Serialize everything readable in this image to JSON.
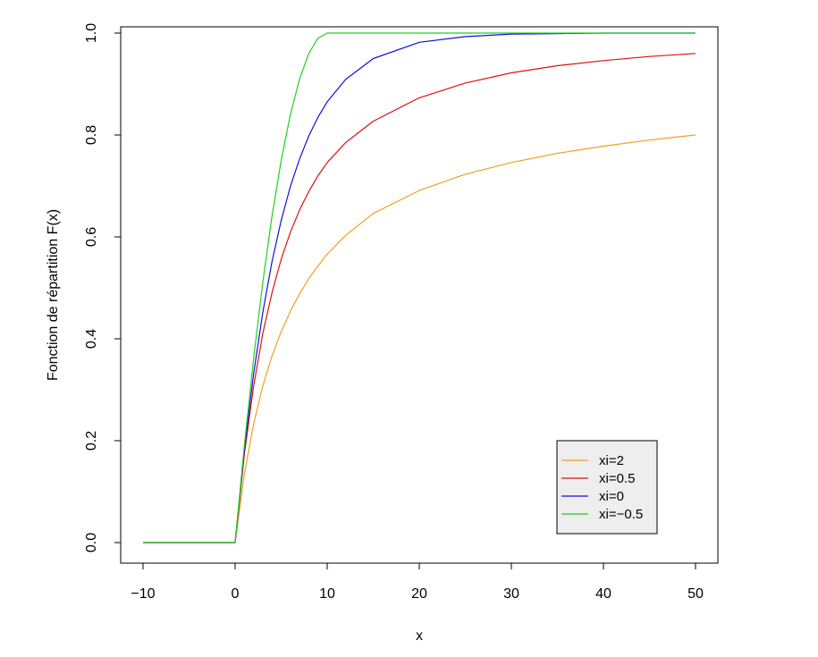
{
  "chart_data": {
    "type": "line",
    "title": "",
    "xlabel": "x",
    "ylabel": "Fonction de répartition F(x)",
    "xlim": [
      -10,
      50
    ],
    "ylim": [
      0,
      1
    ],
    "xticks": [
      -10,
      0,
      10,
      20,
      30,
      40,
      50
    ],
    "xtick_labels": [
      "−10",
      "0",
      "10",
      "20",
      "30",
      "40",
      "50"
    ],
    "yticks": [
      0,
      0.2,
      0.4,
      0.6,
      0.8,
      1.0
    ],
    "ytick_labels": [
      "0.0",
      "0.2",
      "0.4",
      "0.6",
      "0.8",
      "1.0"
    ],
    "grid": false,
    "legend_position": "bottom-right",
    "legend_background": "#eeeeee",
    "x": [
      -10,
      0,
      1,
      2,
      3,
      4,
      5,
      6,
      7,
      8,
      9,
      10,
      12,
      15,
      20,
      25,
      30,
      35,
      40,
      45,
      50
    ],
    "series": [
      {
        "name": "xi=2",
        "color": "#f0a020",
        "values": [
          0,
          0,
          0.134,
          0.232,
          0.307,
          0.366,
          0.414,
          0.454,
          0.488,
          0.518,
          0.543,
          0.566,
          0.603,
          0.646,
          0.691,
          0.723,
          0.746,
          0.764,
          0.778,
          0.79,
          0.8
        ]
      },
      {
        "name": "xi=0.5",
        "color": "#e01010",
        "values": [
          0,
          0,
          0.173,
          0.306,
          0.41,
          0.49,
          0.556,
          0.609,
          0.653,
          0.689,
          0.72,
          0.746,
          0.785,
          0.827,
          0.873,
          0.902,
          0.922,
          0.936,
          0.946,
          0.954,
          0.96
        ]
      },
      {
        "name": "xi=0",
        "color": "#1010e0",
        "values": [
          0,
          0,
          0.181,
          0.33,
          0.451,
          0.551,
          0.632,
          0.699,
          0.753,
          0.798,
          0.835,
          0.865,
          0.909,
          0.95,
          0.982,
          0.993,
          0.998,
          0.999,
          1.0,
          1.0,
          1.0
        ]
      },
      {
        "name": "xi=−0.5",
        "color": "#20d020",
        "values": [
          0,
          0,
          0.19,
          0.36,
          0.51,
          0.64,
          0.75,
          0.84,
          0.91,
          0.96,
          0.99,
          1.0,
          1.0,
          1.0,
          1.0,
          1.0,
          1.0,
          1.0,
          1.0,
          1.0,
          1.0
        ]
      }
    ]
  }
}
